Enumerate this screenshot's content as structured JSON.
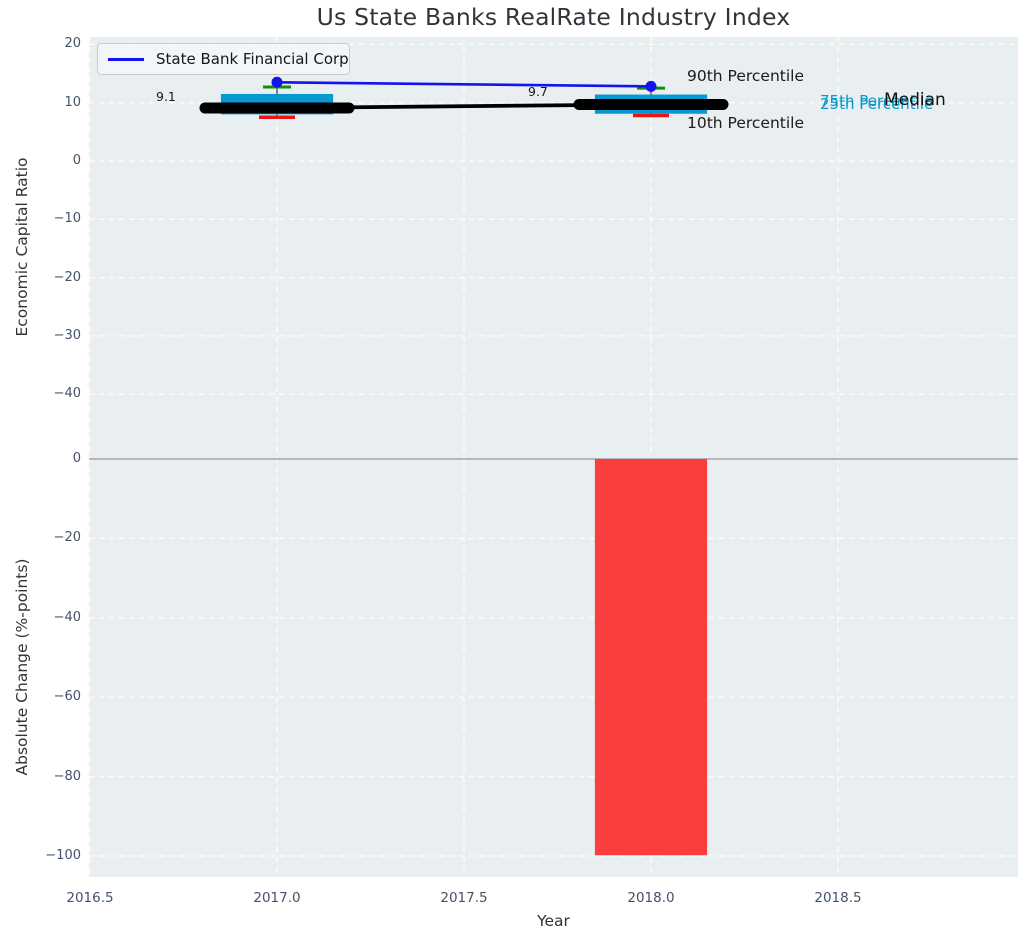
{
  "title": "Us State Banks RealRate Industry Index",
  "legend": {
    "label": "State Bank Financial Corp",
    "line_color": "#1313f0"
  },
  "axes": {
    "top": {
      "ylabel": "Economic Capital Ratio",
      "ytick_labels": [
        "20",
        "10",
        "0",
        "−10",
        "−20",
        "−30",
        "−40"
      ],
      "ytick_values": [
        20,
        10,
        0,
        -10,
        -20,
        -30,
        -40
      ]
    },
    "bottom": {
      "ylabel": "Absolute Change (%-points)",
      "ytick_labels": [
        "0",
        "−20",
        "−40",
        "−60",
        "−80",
        "−100"
      ],
      "ytick_values": [
        0,
        -20,
        -40,
        -60,
        -80,
        -100
      ]
    },
    "x": {
      "label": "Year",
      "tick_labels": [
        "2016.5",
        "2017.0",
        "2017.5",
        "2018.0",
        "2018.5"
      ],
      "tick_values": [
        2016.5,
        2017.0,
        2017.5,
        2018.0,
        2018.5
      ]
    }
  },
  "annotations": {
    "value_2017": "9.1",
    "value_2018": "9.7",
    "p90_label": "90th Percentile",
    "p10_label": "10th Percentile",
    "p75_label": "75th Percentile",
    "p25_label": "25th Percentile",
    "median_label": "Median"
  },
  "colors": {
    "plot_background": "#e9eef0",
    "grid": "#ffffff",
    "box_fill": "#0999cf",
    "company_line": "#1313f0",
    "median_line": "#000000",
    "p90_cap": "#0c910c",
    "p10_cap": "#ea1515",
    "bar_fill": "#fa3d3e",
    "zero_line": "#b4b7bc",
    "tick_text": "#44536b"
  },
  "chart_data": [
    {
      "type": "boxplot",
      "panel": "top",
      "title": "Us State Banks RealRate Industry Index",
      "xlabel": "Year",
      "ylabel": "Economic Capital Ratio",
      "ylim": [
        -51,
        21.4
      ],
      "xlim": [
        2016.5,
        2018.98
      ],
      "grid": true,
      "legend_position": "upper left",
      "categories": [
        2017,
        2018
      ],
      "series": [
        {
          "name": "State Bank Financial Corp",
          "role": "company-line",
          "values": [
            13.5,
            12.8
          ]
        },
        {
          "name": "Median",
          "role": "median-line",
          "values": [
            9.1,
            9.7
          ]
        },
        {
          "name": "90th Percentile",
          "role": "whisker-top-cap",
          "values": [
            12.7,
            12.5
          ]
        },
        {
          "name": "75th Percentile",
          "role": "box-top",
          "values": [
            11.5,
            11.4
          ]
        },
        {
          "name": "25th Percentile",
          "role": "box-bottom",
          "values": [
            8.0,
            8.1
          ]
        },
        {
          "name": "10th Percentile",
          "role": "whisker-bottom-cap",
          "values": [
            7.5,
            7.8
          ]
        }
      ],
      "median_point_labels": [
        "9.1",
        "9.7"
      ],
      "box_width_years": 0.3
    },
    {
      "type": "bar",
      "panel": "bottom",
      "xlabel": "Year",
      "ylabel": "Absolute Change (%-points)",
      "ylim": [
        -105.8,
        0.9
      ],
      "xlim": [
        2016.5,
        2018.98
      ],
      "grid": true,
      "x": [
        2018
      ],
      "values": [
        -99.8
      ],
      "bar_width_years": 0.3
    }
  ]
}
